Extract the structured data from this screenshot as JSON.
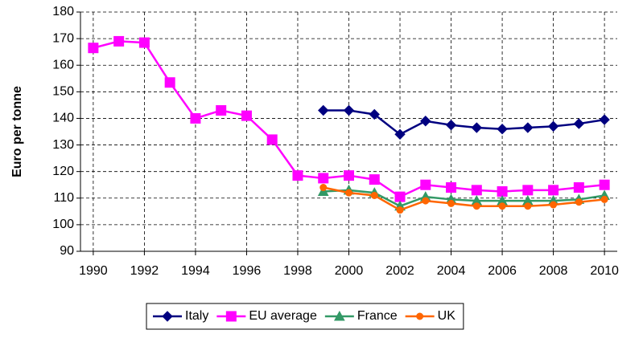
{
  "chart_data": {
    "type": "line",
    "y_label": "Euro per tonne",
    "x": [
      1990,
      1991,
      1992,
      1993,
      1994,
      1995,
      1996,
      1997,
      1998,
      1999,
      2000,
      2001,
      2002,
      2003,
      2004,
      2005,
      2006,
      2007,
      2008,
      2009,
      2010
    ],
    "series": [
      {
        "name": "Italy",
        "color": "#000080",
        "marker": "diamond",
        "values": [
          null,
          null,
          null,
          null,
          null,
          null,
          null,
          null,
          null,
          143,
          143,
          141.5,
          134,
          139,
          137.5,
          136.5,
          136,
          136.5,
          137,
          138,
          139.5
        ]
      },
      {
        "name": "EU average",
        "color": "#ff00ff",
        "marker": "square",
        "values": [
          166.5,
          169,
          168.5,
          153.5,
          140,
          143,
          141,
          132,
          118.5,
          117.5,
          118.5,
          117,
          110.5,
          115,
          114,
          113,
          112.5,
          113,
          113,
          114,
          115
        ]
      },
      {
        "name": "France",
        "color": "#339966",
        "marker": "triangle",
        "values": [
          null,
          null,
          null,
          null,
          null,
          null,
          null,
          null,
          null,
          112.5,
          113,
          112,
          107,
          110.5,
          109.5,
          109,
          109,
          109,
          109,
          109.5,
          111
        ]
      },
      {
        "name": "UK",
        "color": "#ff6600",
        "marker": "circle",
        "values": [
          null,
          null,
          null,
          null,
          null,
          null,
          null,
          null,
          null,
          114,
          112,
          111,
          105.5,
          109,
          108,
          107,
          107,
          107,
          107.5,
          108.5,
          109.5
        ]
      }
    ],
    "xlim": [
      1989.5,
      2010.5
    ],
    "xticks": [
      1990,
      1992,
      1994,
      1996,
      1998,
      2000,
      2002,
      2004,
      2006,
      2008,
      2010
    ],
    "ylim": [
      90,
      180
    ],
    "yticks": [
      90,
      100,
      110,
      120,
      130,
      140,
      150,
      160,
      170,
      180
    ],
    "grid": true,
    "legend": "bottom"
  }
}
